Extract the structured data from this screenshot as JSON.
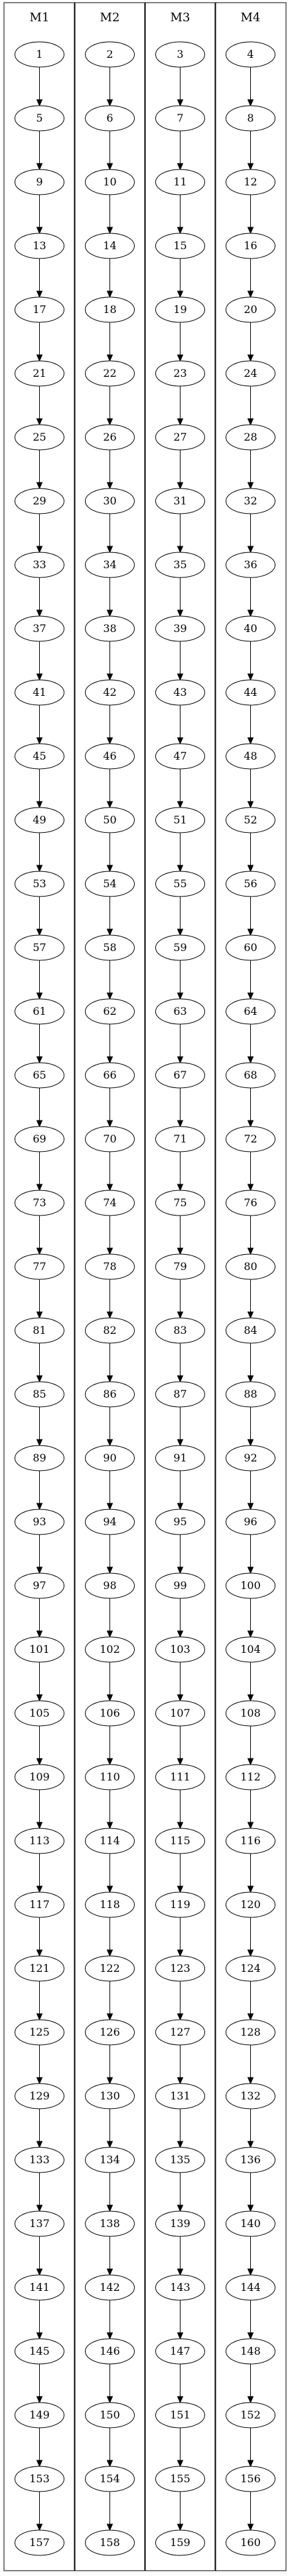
{
  "diagram": {
    "type": "graphviz-clusters",
    "clusters": [
      {
        "label": "M1",
        "nodes": [
          "1",
          "5",
          "9",
          "13",
          "17",
          "21",
          "25",
          "29",
          "33",
          "37",
          "41",
          "45",
          "49",
          "53",
          "57",
          "61",
          "65",
          "69",
          "73",
          "77",
          "81",
          "85",
          "89",
          "93",
          "97",
          "101",
          "105",
          "109",
          "113",
          "117",
          "121",
          "125",
          "129",
          "133",
          "137",
          "141",
          "145",
          "149",
          "153",
          "157"
        ]
      },
      {
        "label": "M2",
        "nodes": [
          "2",
          "6",
          "10",
          "14",
          "18",
          "22",
          "26",
          "30",
          "34",
          "38",
          "42",
          "46",
          "50",
          "54",
          "58",
          "62",
          "66",
          "70",
          "74",
          "78",
          "82",
          "86",
          "90",
          "94",
          "98",
          "102",
          "106",
          "110",
          "114",
          "118",
          "122",
          "126",
          "130",
          "134",
          "138",
          "142",
          "146",
          "150",
          "154",
          "158"
        ]
      },
      {
        "label": "M3",
        "nodes": [
          "3",
          "7",
          "11",
          "15",
          "19",
          "23",
          "27",
          "31",
          "35",
          "39",
          "43",
          "47",
          "51",
          "55",
          "59",
          "63",
          "67",
          "71",
          "75",
          "79",
          "83",
          "87",
          "91",
          "95",
          "99",
          "103",
          "107",
          "111",
          "115",
          "119",
          "123",
          "127",
          "131",
          "135",
          "139",
          "143",
          "147",
          "151",
          "155",
          "159"
        ]
      },
      {
        "label": "M4",
        "nodes": [
          "4",
          "8",
          "12",
          "16",
          "20",
          "24",
          "28",
          "32",
          "36",
          "40",
          "44",
          "48",
          "52",
          "56",
          "60",
          "64",
          "68",
          "72",
          "76",
          "80",
          "84",
          "88",
          "92",
          "96",
          "100",
          "104",
          "108",
          "112",
          "116",
          "120",
          "124",
          "128",
          "132",
          "136",
          "140",
          "144",
          "148",
          "152",
          "156",
          "160"
        ]
      }
    ],
    "edges": "sequential-within-cluster"
  }
}
